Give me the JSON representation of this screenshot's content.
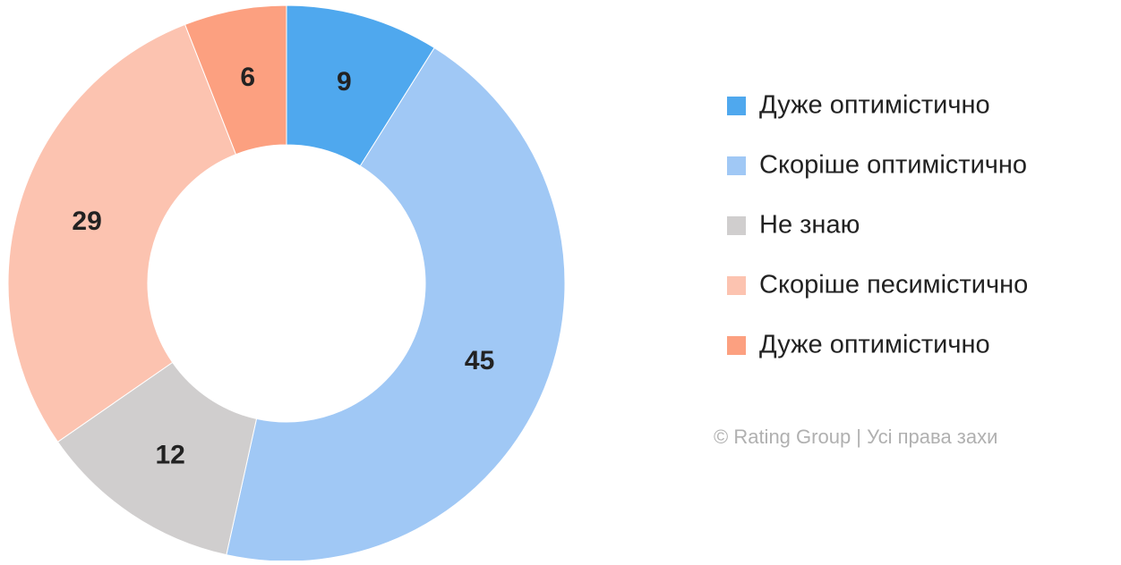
{
  "chart_data": {
    "type": "pie",
    "categories": [
      "Дуже оптимістично",
      "Скоріше оптимістично",
      "Не знаю",
      "Скоріше песимістично",
      "Дуже оптимістично"
    ],
    "values": [
      9,
      45,
      12,
      29,
      6
    ],
    "colors": [
      "#4fa8ee",
      "#a0c8f5",
      "#d0cece",
      "#fcc3b0",
      "#fca080"
    ],
    "donut": true,
    "legend": "right",
    "source": "© Rating Group | Усі права захи"
  }
}
